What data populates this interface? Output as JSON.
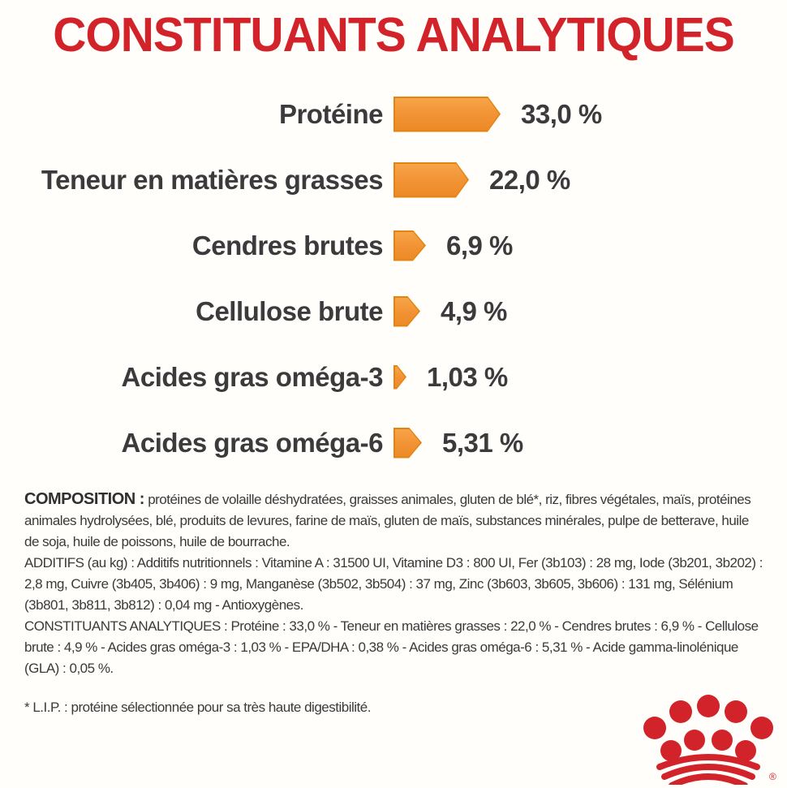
{
  "page": {
    "accent_red": "#d2232a",
    "bar_orange": "#f19233",
    "bar_orange_dark": "#e2840f",
    "text_dark": "#3b3b3d",
    "background": "#fffefa"
  },
  "chart_data": {
    "type": "bar",
    "orientation": "horizontal",
    "title": "CONSTITUANTS ANALYTIQUES",
    "unit": "%",
    "categories": [
      "Protéine",
      "Teneur en matières grasses",
      "Cendres brutes",
      "Cellulose brute",
      "Acides gras oméga-3",
      "Acides gras oméga-6"
    ],
    "values": [
      33.0,
      22.0,
      6.9,
      4.9,
      1.03,
      5.31
    ],
    "value_labels": [
      "33,0 %",
      "22,0 %",
      "6,9 %",
      "4,9 %",
      "1,03 %",
      "5,31 %"
    ],
    "xlim": [
      0,
      35
    ],
    "bar_color": "#f19233",
    "legend": "none",
    "grid": false
  },
  "composition": {
    "label": "COMPOSITION :",
    "body": "protéines de volaille déshydratées, graisses animales, gluten de blé*, riz, fibres végétales, maïs, protéines animales hydrolysées, blé, produits de levures, farine de maïs, gluten de maïs, substances minérales, pulpe de betterave, huile de soja, huile de poissons, huile de bourrache."
  },
  "additifs": {
    "text": "ADDITIFS (au kg) : Additifs nutritionnels : Vitamine A : 31500 UI, Vitamine D3 : 800 UI, Fer (3b103) : 28 mg, Iode (3b201, 3b202) : 2,8 mg, Cuivre (3b405, 3b406) : 9 mg, Manganèse (3b502, 3b504) : 37 mg, Zinc (3b603, 3b605, 3b606) : 131 mg, Sélénium (3b801, 3b811, 3b812) : 0,04 mg - Antioxygènes."
  },
  "constituants": {
    "text": "CONSTITUANTS ANALYTIQUES : Protéine : 33,0 % - Teneur en matières grasses : 22,0 % - Cendres brutes : 6,9 % - Cellulose brute : 4,9 % - Acides gras oméga-3 : 1,03 % - EPA/DHA : 0,38 % - Acides gras oméga-6 : 5,31 % - Acide gamma-linolénique (GLA) : 0,05 %."
  },
  "footnote": "* L.I.P. : protéine sélectionnée pour sa très haute digestibilité.",
  "logo": {
    "name": "royal-canin-crown",
    "color": "#d2232a",
    "registered_mark": "®"
  }
}
